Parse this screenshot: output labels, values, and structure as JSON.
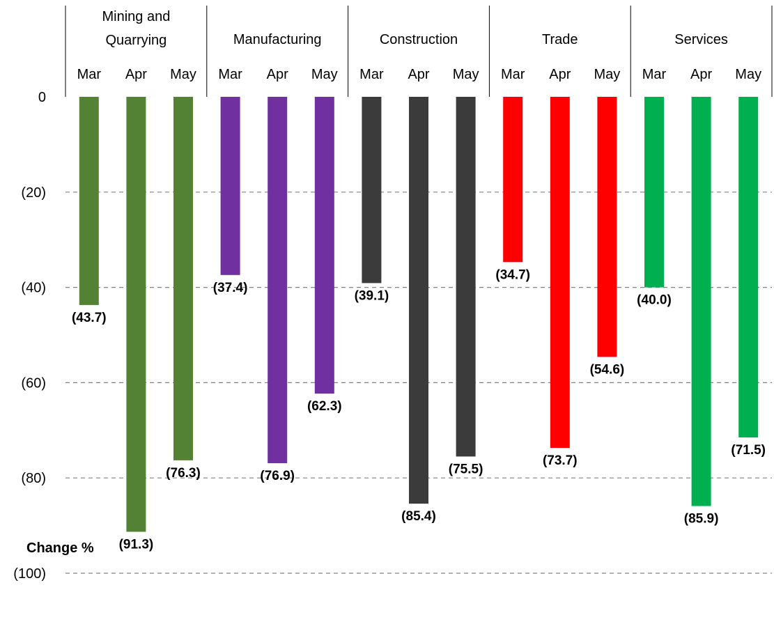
{
  "chart_data": {
    "type": "bar",
    "orientation": "vertical",
    "ylabel": "Change %",
    "ylim": [
      -100,
      0
    ],
    "yticks": [
      0,
      -20,
      -40,
      -60,
      -80,
      -100
    ],
    "ytick_labels": [
      "0",
      "(20)",
      "(40)",
      "(60)",
      "(80)",
      "(100)"
    ],
    "grid": true,
    "legend": "none",
    "groups": [
      {
        "name": "Mining and\nQuarrying",
        "lines": [
          "Mining and",
          "Quarrying"
        ],
        "color": "#548235",
        "months": [
          "Mar",
          "Apr",
          "May"
        ],
        "values": [
          -43.7,
          -91.3,
          -76.3
        ],
        "labels": [
          "(43.7)",
          "(91.3)",
          "(76.3)"
        ]
      },
      {
        "name": "Manufacturing",
        "lines": [
          "Manufacturing"
        ],
        "color": "#7030A0",
        "months": [
          "Mar",
          "Apr",
          "May"
        ],
        "values": [
          -37.4,
          -76.9,
          -62.3
        ],
        "labels": [
          "(37.4)",
          "(76.9)",
          "(62.3)"
        ]
      },
      {
        "name": "Construction",
        "lines": [
          "Construction"
        ],
        "color": "#3B3B3B",
        "months": [
          "Mar",
          "Apr",
          "May"
        ],
        "values": [
          -39.1,
          -85.4,
          -75.5
        ],
        "labels": [
          "(39.1)",
          "(85.4)",
          "(75.5)"
        ]
      },
      {
        "name": "Trade",
        "lines": [
          "Trade"
        ],
        "color": "#FF0000",
        "months": [
          "Mar",
          "Apr",
          "May"
        ],
        "values": [
          -34.7,
          -73.7,
          -54.6
        ],
        "labels": [
          "(34.7)",
          "(73.7)",
          "(54.6)"
        ]
      },
      {
        "name": "Services",
        "lines": [
          "Services"
        ],
        "color": "#00B050",
        "months": [
          "Mar",
          "Apr",
          "May"
        ],
        "values": [
          -40.0,
          -85.9,
          -71.5
        ],
        "labels": [
          "(40.0)",
          "(85.9)",
          "(71.5)"
        ]
      }
    ]
  }
}
